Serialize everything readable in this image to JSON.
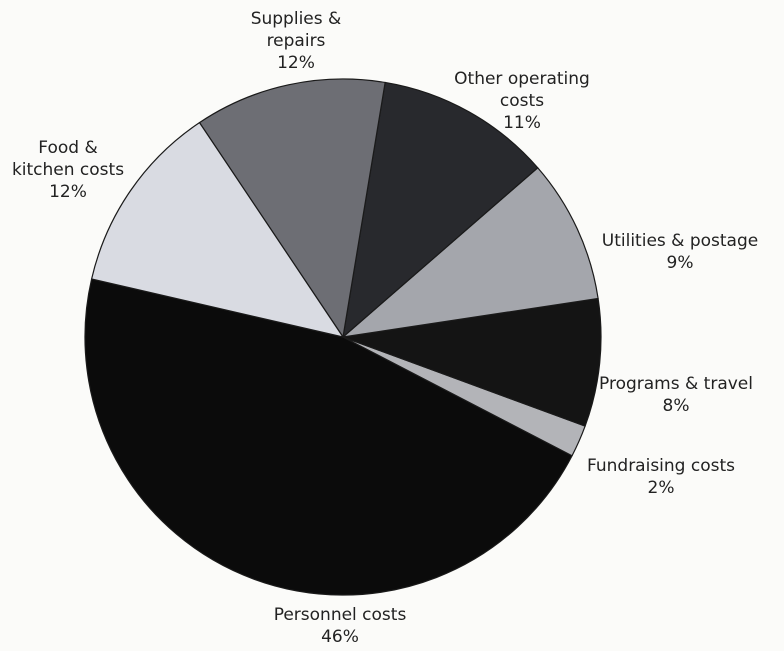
{
  "chart_data": {
    "type": "pie",
    "title": "",
    "categories": [
      "Personnel costs",
      "Food & kitchen costs",
      "Supplies & repairs",
      "Other operating costs",
      "Utilities & postage",
      "Programs & travel",
      "Fundraising costs"
    ],
    "values": [
      46,
      12,
      12,
      11,
      9,
      8,
      2
    ],
    "value_labels": [
      "46%",
      "12%",
      "12%",
      "11%",
      "9%",
      "8%",
      "2%"
    ],
    "label_lines": [
      [
        "Personnel costs",
        "46%"
      ],
      [
        "Food &",
        "kitchen costs",
        "12%"
      ],
      [
        "Supplies &",
        "repairs",
        "12%"
      ],
      [
        "Other operating",
        "costs",
        "11%"
      ],
      [
        "Utilities & postage",
        "9%"
      ],
      [
        "Programs & travel",
        "8%"
      ],
      [
        "Fundraising costs",
        "2%"
      ]
    ],
    "colors": [
      "#0b0b0b",
      "#d9dbe2",
      "#6d6e74",
      "#28292d",
      "#a4a6ac",
      "#141414",
      "#b3b4b8"
    ],
    "legend": "none",
    "grid": false
  }
}
